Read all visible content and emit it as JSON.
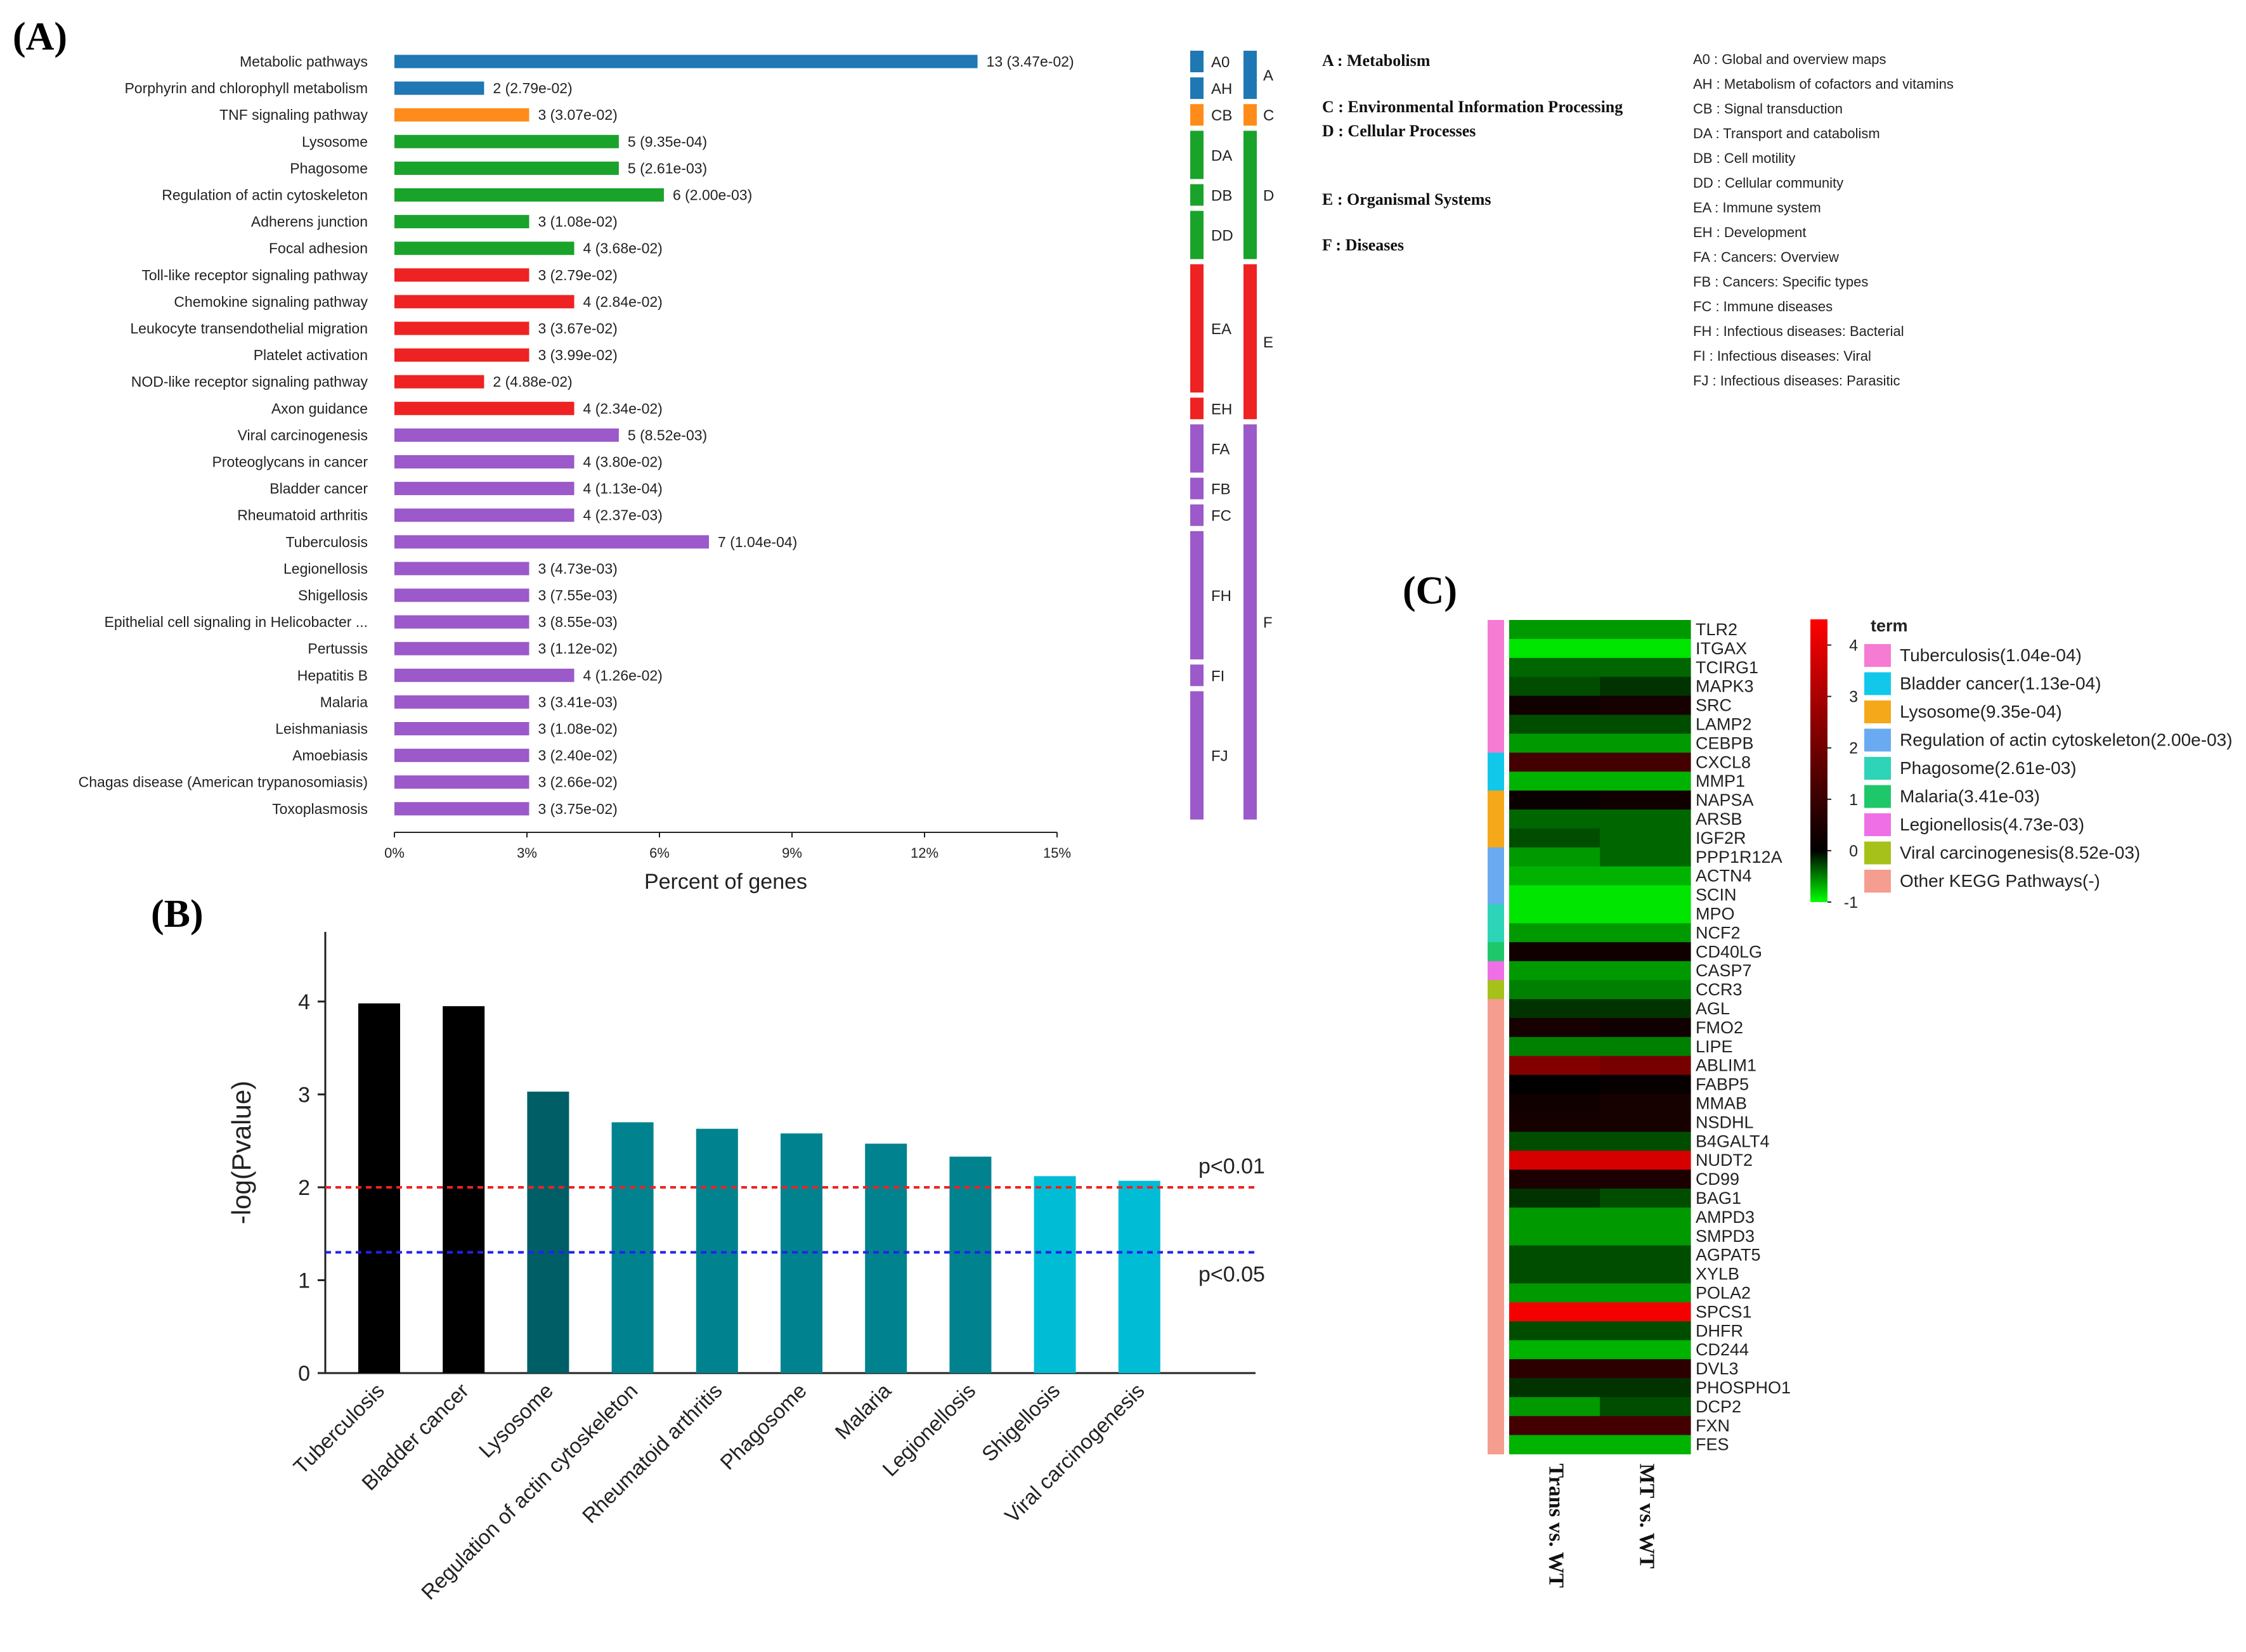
{
  "colors": {
    "A": "#1f77b4",
    "C": "#ff8c1a",
    "D": "#1aa32a",
    "E": "#ee2222",
    "F": "#9b59c9",
    "bar_black": "#000000",
    "bar_dark_teal": "#005f66",
    "bar_teal": "#00838f",
    "bar_cyan": "#00bcd4",
    "thr_red": "#ee2222",
    "thr_blue": "#2222ee"
  },
  "panels": {
    "a": "(A)",
    "b": "(B)",
    "c": "(C)"
  },
  "chart_data": [
    {
      "type": "bar",
      "orientation": "horizontal",
      "panel": "A",
      "xlabel": "Percent of genes",
      "xlim": [
        0,
        15
      ],
      "xticks": [
        "0%",
        "3%",
        "6%",
        "9%",
        "12%",
        "15%"
      ],
      "xtick_values": [
        0,
        3,
        6,
        9,
        12,
        15
      ],
      "categories": [
        "Metabolic pathways",
        "Porphyrin and chlorophyll metabolism",
        "TNF signaling pathway",
        "Lysosome",
        "Phagosome",
        "Regulation of actin cytoskeleton",
        "Adherens junction",
        "Focal adhesion",
        "Toll-like receptor signaling pathway",
        "Chemokine signaling pathway",
        "Leukocyte transendothelial migration",
        "Platelet activation",
        "NOD-like receptor signaling pathway",
        "Axon guidance",
        "Viral carcinogenesis",
        "Proteoglycans in cancer",
        "Bladder cancer",
        "Rheumatoid arthritis",
        "Tuberculosis",
        "Legionellosis",
        "Shigellosis",
        "Epithelial cell signaling in Helicobacter ...",
        "Pertussis",
        "Hepatitis B",
        "Malaria",
        "Leishmaniasis",
        "Amoebiasis",
        "Chagas disease (American trypanosomiasis)",
        "Toxoplasmosis"
      ],
      "values": [
        13.2,
        2.03,
        3.05,
        5.08,
        5.08,
        6.1,
        3.05,
        4.07,
        3.05,
        4.07,
        3.05,
        3.05,
        2.03,
        4.07,
        5.08,
        4.07,
        4.07,
        4.07,
        7.12,
        3.05,
        3.05,
        3.05,
        3.05,
        4.07,
        3.05,
        3.05,
        3.05,
        3.05,
        3.05
      ],
      "bar_labels": [
        "13 (3.47e-02)",
        "2 (2.79e-02)",
        "3 (3.07e-02)",
        "5 (9.35e-04)",
        "5 (2.61e-03)",
        "6 (2.00e-03)",
        "3 (1.08e-02)",
        "4 (3.68e-02)",
        "3 (2.79e-02)",
        "4 (2.84e-02)",
        "3 (3.67e-02)",
        "3 (3.99e-02)",
        "2 (4.88e-02)",
        "4 (2.34e-02)",
        "5 (8.52e-03)",
        "4 (3.80e-02)",
        "4 (1.13e-04)",
        "4 (2.37e-03)",
        "7 (1.04e-04)",
        "3 (4.73e-03)",
        "3 (7.55e-03)",
        "3 (8.55e-03)",
        "3 (1.12e-02)",
        "4 (1.26e-02)",
        "3 (3.41e-03)",
        "3 (1.08e-02)",
        "3 (2.40e-02)",
        "3 (2.66e-02)",
        "3 (3.75e-02)"
      ],
      "class_of_bar": [
        "A",
        "A",
        "C",
        "D",
        "D",
        "D",
        "D",
        "D",
        "E",
        "E",
        "E",
        "E",
        "E",
        "E",
        "F",
        "F",
        "F",
        "F",
        "F",
        "F",
        "F",
        "F",
        "F",
        "F",
        "F",
        "F",
        "F",
        "F",
        "F"
      ],
      "subclasses": [
        {
          "code": "A0",
          "class": "A",
          "start": 0,
          "end": 0
        },
        {
          "code": "AH",
          "class": "A",
          "start": 1,
          "end": 1
        },
        {
          "code": "CB",
          "class": "C",
          "start": 2,
          "end": 2
        },
        {
          "code": "DA",
          "class": "D",
          "start": 3,
          "end": 4
        },
        {
          "code": "DB",
          "class": "D",
          "start": 5,
          "end": 5
        },
        {
          "code": "DD",
          "class": "D",
          "start": 6,
          "end": 7
        },
        {
          "code": "EA",
          "class": "E",
          "start": 8,
          "end": 12
        },
        {
          "code": "EH",
          "class": "E",
          "start": 13,
          "end": 13
        },
        {
          "code": "FA",
          "class": "F",
          "start": 14,
          "end": 15
        },
        {
          "code": "FB",
          "class": "F",
          "start": 16,
          "end": 16
        },
        {
          "code": "FC",
          "class": "F",
          "start": 17,
          "end": 17
        },
        {
          "code": "FH",
          "class": "F",
          "start": 18,
          "end": 22
        },
        {
          "code": "FI",
          "class": "F",
          "start": 23,
          "end": 23
        },
        {
          "code": "FJ",
          "class": "F",
          "start": 24,
          "end": 28
        }
      ],
      "classes": [
        {
          "code": "A",
          "start": 0,
          "end": 1
        },
        {
          "code": "C",
          "start": 2,
          "end": 2
        },
        {
          "code": "D",
          "start": 3,
          "end": 7
        },
        {
          "code": "E",
          "start": 8,
          "end": 13
        },
        {
          "code": "F",
          "start": 14,
          "end": 28
        }
      ],
      "class_legend": [
        "A : Metabolism",
        "C : Environmental Information Processing",
        "D : Cellular Processes",
        "E : Organismal Systems",
        "F : Diseases"
      ],
      "subclass_legend": [
        "A0 : Global and overview maps",
        "AH : Metabolism of cofactors and vitamins",
        "CB : Signal transduction",
        "DA : Transport and catabolism",
        "DB : Cell motility",
        "DD : Cellular community",
        "EA : Immune system",
        "EH : Development",
        "FA : Cancers: Overview",
        "FB : Cancers: Specific types",
        "FC : Immune diseases",
        "FH : Infectious diseases: Bacterial",
        "FI : Infectious diseases: Viral",
        "FJ : Infectious diseases: Parasitic"
      ]
    },
    {
      "type": "bar",
      "panel": "B",
      "ylabel": "-log(Pvalue)",
      "ylim": [
        0,
        4.75
      ],
      "yticks": [
        0,
        1,
        2,
        3,
        4
      ],
      "categories": [
        "Tuberculosis",
        "Bladder cancer",
        "Lysosome",
        "Regulation of actin cytoskeleton",
        "Rheumatoid arthritis",
        "Phagosome",
        "Malaria",
        "Legionellosis",
        "Shigellosis",
        "Viral carcinogenesis"
      ],
      "values": [
        3.98,
        3.95,
        3.03,
        2.7,
        2.63,
        2.58,
        2.47,
        2.33,
        2.12,
        2.07
      ],
      "bar_colors": [
        "bar_black",
        "bar_black",
        "bar_dark_teal",
        "bar_teal",
        "bar_teal",
        "bar_teal",
        "bar_teal",
        "bar_teal",
        "bar_cyan",
        "bar_cyan"
      ],
      "thresholds": [
        {
          "value": 2.0,
          "label": "p<0.01",
          "color": "thr_red"
        },
        {
          "value": 1.3,
          "label": "p<0.05",
          "color": "thr_blue"
        }
      ]
    },
    {
      "type": "heatmap",
      "panel": "C",
      "genes": [
        "TLR2",
        "ITGAX",
        "TCIRG1",
        "MAPK3",
        "SRC",
        "LAMP2",
        "CEBPB",
        "CXCL8",
        "MMP1",
        "NAPSA",
        "ARSB",
        "IGF2R",
        "PPP1R12A",
        "ACTN4",
        "SCIN",
        "MPO",
        "NCF2",
        "CD40LG",
        "CASP7",
        "CCR3",
        "AGL",
        "FMO2",
        "LIPE",
        "ABLIM1",
        "FABP5",
        "MMAB",
        "NSDHL",
        "B4GALT4",
        "NUDT2",
        "CD99",
        "BAG1",
        "AMPD3",
        "SMPD3",
        "AGPAT5",
        "XYLB",
        "POLA2",
        "SPCS1",
        "DHFR",
        "CD244",
        "DVL3",
        "PHOSPHO1",
        "DCP2",
        "FXN",
        "FES"
      ],
      "columns": [
        "Trans vs. WT",
        "MT vs. WT"
      ],
      "values": [
        [
          -0.6,
          -0.6
        ],
        [
          -0.9,
          -0.9
        ],
        [
          -0.4,
          -0.4
        ],
        [
          -0.3,
          -0.2
        ],
        [
          0.3,
          0.4
        ],
        [
          -0.3,
          -0.3
        ],
        [
          -0.6,
          -0.6
        ],
        [
          1.2,
          1.2
        ],
        [
          -0.7,
          -0.7
        ],
        [
          0.2,
          0.3
        ],
        [
          -0.4,
          -0.4
        ],
        [
          -0.3,
          -0.4
        ],
        [
          -0.6,
          -0.4
        ],
        [
          -0.7,
          -0.7
        ],
        [
          -0.9,
          -0.9
        ],
        [
          -0.9,
          -0.9
        ],
        [
          -0.6,
          -0.6
        ],
        [
          0.3,
          0.3
        ],
        [
          -0.6,
          -0.6
        ],
        [
          -0.5,
          -0.5
        ],
        [
          -0.2,
          -0.2
        ],
        [
          0.4,
          0.3
        ],
        [
          -0.5,
          -0.5
        ],
        [
          2.3,
          2.1
        ],
        [
          0.0,
          0.1
        ],
        [
          0.3,
          0.4
        ],
        [
          0.4,
          0.4
        ],
        [
          -0.3,
          -0.3
        ],
        [
          3.8,
          3.8
        ],
        [
          0.5,
          0.5
        ],
        [
          -0.2,
          -0.3
        ],
        [
          -0.6,
          -0.6
        ],
        [
          -0.6,
          -0.6
        ],
        [
          -0.3,
          -0.3
        ],
        [
          -0.3,
          -0.3
        ],
        [
          -0.6,
          -0.6
        ],
        [
          4.3,
          4.3
        ],
        [
          -0.3,
          -0.3
        ],
        [
          -0.7,
          -0.7
        ],
        [
          0.8,
          0.8
        ],
        [
          -0.2,
          -0.2
        ],
        [
          -0.6,
          -0.3
        ],
        [
          1.2,
          1.2
        ],
        [
          -0.7,
          -0.7
        ]
      ],
      "row_terms": [
        "Tuberculosis(1.04e-04)",
        "Tuberculosis(1.04e-04)",
        "Tuberculosis(1.04e-04)",
        "Tuberculosis(1.04e-04)",
        "Tuberculosis(1.04e-04)",
        "Tuberculosis(1.04e-04)",
        "Tuberculosis(1.04e-04)",
        "Bladder cancer(1.13e-04)",
        "Bladder cancer(1.13e-04)",
        "Lysosome(9.35e-04)",
        "Lysosome(9.35e-04)",
        "Lysosome(9.35e-04)",
        "Regulation of actin cytoskeleton(2.00e-03)",
        "Regulation of actin cytoskeleton(2.00e-03)",
        "Regulation of actin cytoskeleton(2.00e-03)",
        "Phagosome(2.61e-03)",
        "Phagosome(2.61e-03)",
        "Malaria(3.41e-03)",
        "Legionellosis(4.73e-03)",
        "Viral carcinogenesis(8.52e-03)",
        "Other KEGG Pathways(-)",
        "Other KEGG Pathways(-)",
        "Other KEGG Pathways(-)",
        "Other KEGG Pathways(-)",
        "Other KEGG Pathways(-)",
        "Other KEGG Pathways(-)",
        "Other KEGG Pathways(-)",
        "Other KEGG Pathways(-)",
        "Other KEGG Pathways(-)",
        "Other KEGG Pathways(-)",
        "Other KEGG Pathways(-)",
        "Other KEGG Pathways(-)",
        "Other KEGG Pathways(-)",
        "Other KEGG Pathways(-)",
        "Other KEGG Pathways(-)",
        "Other KEGG Pathways(-)",
        "Other KEGG Pathways(-)",
        "Other KEGG Pathways(-)",
        "Other KEGG Pathways(-)",
        "Other KEGG Pathways(-)",
        "Other KEGG Pathways(-)",
        "Other KEGG Pathways(-)",
        "Other KEGG Pathways(-)",
        "Other KEGG Pathways(-)"
      ],
      "terms": [
        {
          "name": "Tuberculosis(1.04e-04)",
          "color": "#f57bd3"
        },
        {
          "name": "Bladder cancer(1.13e-04)",
          "color": "#12c8ea"
        },
        {
          "name": "Lysosome(9.35e-04)",
          "color": "#f5a81a"
        },
        {
          "name": "Regulation of actin cytoskeleton(2.00e-03)",
          "color": "#6aaaf0"
        },
        {
          "name": "Phagosome(2.61e-03)",
          "color": "#2dd4b8"
        },
        {
          "name": "Malaria(3.41e-03)",
          "color": "#1ec86a"
        },
        {
          "name": "Legionellosis(4.73e-03)",
          "color": "#ef6fe6"
        },
        {
          "name": "Viral carcinogenesis(8.52e-03)",
          "color": "#a6c21a"
        },
        {
          "name": "Other KEGG Pathways(-)",
          "color": "#f59d8e"
        }
      ],
      "legend_title": "term",
      "colorbar": {
        "min": -1,
        "max": 4.5,
        "ticks": [
          4,
          3,
          2,
          1,
          0,
          -1
        ]
      }
    }
  ]
}
